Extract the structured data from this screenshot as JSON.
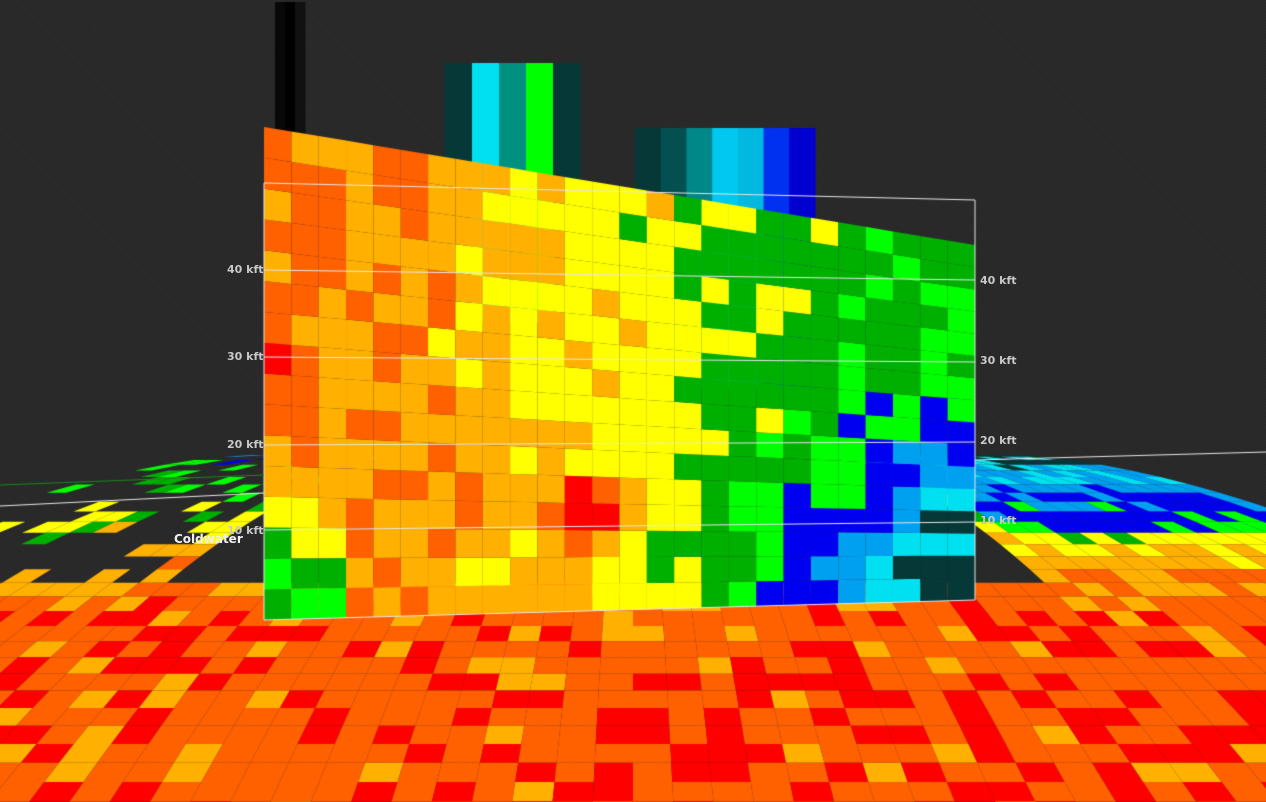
{
  "view": {
    "type": "3D radar reflectivity cross-section",
    "background_color": "#2a2a2a"
  },
  "height_labels_left": [
    "40 kft",
    "30 kft",
    "20 kft",
    "10 kft"
  ],
  "height_labels_right": [
    "40 kft",
    "30 kft",
    "20 kft",
    "10 kft"
  ],
  "place_label": "Coldwater",
  "color_scale": {
    "thresholds_dbz": [
      15,
      20,
      25,
      30,
      35,
      40,
      45,
      50,
      55,
      60,
      65
    ],
    "colors": [
      "#063838",
      "#00e0f0",
      "#00a0f0",
      "#0000f0",
      "#00ff00",
      "#00b000",
      "#ffff00",
      "#ffb000",
      "#ff6000",
      "#ff0000",
      "#ff00ff"
    ]
  }
}
